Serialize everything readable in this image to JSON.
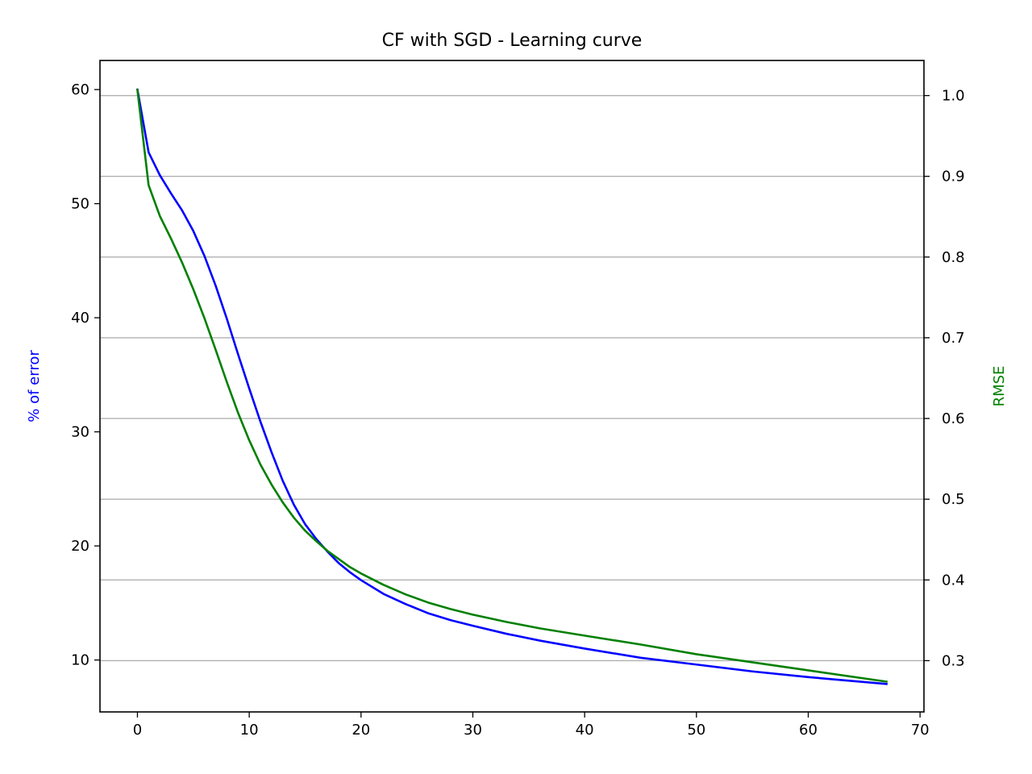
{
  "chart_data": {
    "type": "line",
    "title": "CF with SGD - Learning curve",
    "xlabel": "",
    "ylabel_left": "% of error",
    "ylabel_right": "RMSE",
    "xlim": [
      -3.35,
      70.35
    ],
    "ylim_left": [
      5.45,
      62.55
    ],
    "ylim_right": [
      0.2365,
      1.0435
    ],
    "x_ticks": [
      0,
      10,
      20,
      30,
      40,
      50,
      60,
      70
    ],
    "y_left_ticks": [
      10,
      20,
      30,
      40,
      50,
      60
    ],
    "y_right_ticks": [
      "0.3",
      "0.4",
      "0.5",
      "0.6",
      "0.7",
      "0.8",
      "0.9",
      "1.0"
    ],
    "grid": "y-right",
    "colors": {
      "left": "#0000ff",
      "right": "#008000",
      "grid": "#b0b0b0",
      "axis": "#000000"
    },
    "series": [
      {
        "axis": "left",
        "color": "#0000ff",
        "x": [
          0,
          1,
          2,
          3,
          4,
          5,
          6,
          7,
          8,
          9,
          10,
          11,
          12,
          13,
          14,
          15,
          16,
          17,
          18,
          19,
          20,
          22,
          24,
          26,
          28,
          30,
          33,
          36,
          40,
          45,
          50,
          55,
          60,
          67
        ],
        "values": [
          60.0,
          54.5,
          52.5,
          50.9,
          49.4,
          47.6,
          45.4,
          42.8,
          39.9,
          36.8,
          33.8,
          30.9,
          28.2,
          25.7,
          23.6,
          21.9,
          20.6,
          19.5,
          18.5,
          17.7,
          17.0,
          15.8,
          14.9,
          14.1,
          13.5,
          13.0,
          12.3,
          11.7,
          11.0,
          10.2,
          9.6,
          9.0,
          8.5,
          7.9
        ]
      },
      {
        "axis": "right",
        "color": "#008000",
        "x": [
          0,
          1,
          2,
          3,
          4,
          5,
          6,
          7,
          8,
          9,
          10,
          11,
          12,
          13,
          14,
          15,
          16,
          17,
          18,
          19,
          20,
          22,
          24,
          26,
          28,
          30,
          33,
          36,
          40,
          45,
          50,
          55,
          60,
          67
        ],
        "values": [
          1.007,
          0.889,
          0.851,
          0.823,
          0.793,
          0.76,
          0.724,
          0.685,
          0.645,
          0.607,
          0.573,
          0.543,
          0.518,
          0.496,
          0.477,
          0.461,
          0.448,
          0.436,
          0.426,
          0.416,
          0.408,
          0.394,
          0.382,
          0.372,
          0.364,
          0.357,
          0.348,
          0.34,
          0.331,
          0.32,
          0.308,
          0.298,
          0.288,
          0.274
        ]
      }
    ]
  }
}
